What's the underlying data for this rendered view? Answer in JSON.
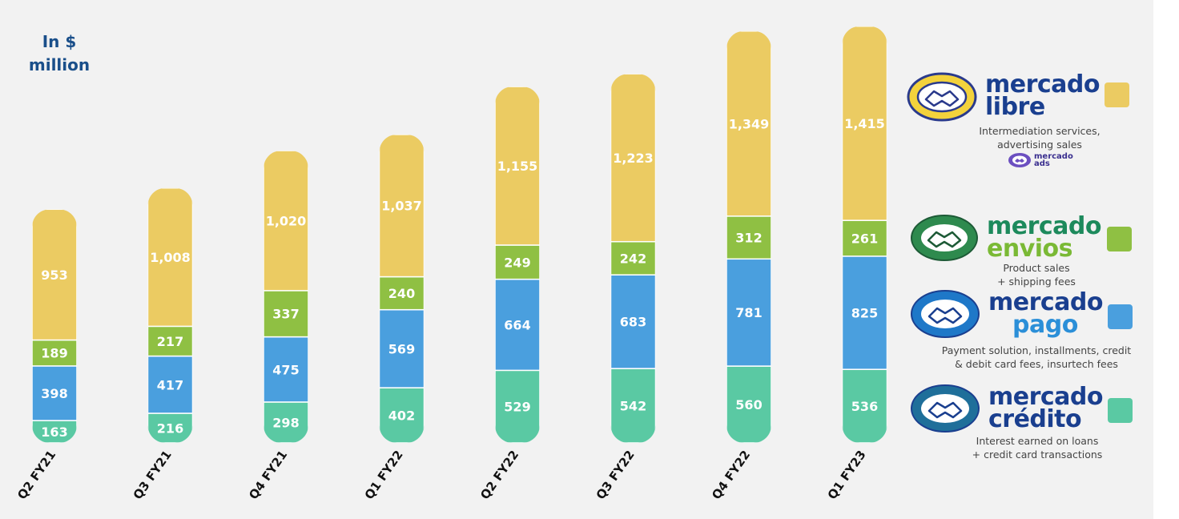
{
  "unit_label_line1": "In $",
  "unit_label_line2": "million",
  "chart_data": {
    "type": "bar",
    "stacked": true,
    "categories": [
      "Q2 FY21",
      "Q3 FY21",
      "Q4 FY21",
      "Q1 FY22",
      "Q2 FY22",
      "Q3 FY22",
      "Q4 FY22",
      "Q1 FY23"
    ],
    "series": [
      {
        "name": "mercado crédito",
        "color": "#5ac9a3",
        "values": [
          163,
          216,
          298,
          402,
          529,
          542,
          560,
          536
        ]
      },
      {
        "name": "mercado pago",
        "color": "#4a9fde",
        "values": [
          398,
          417,
          475,
          569,
          664,
          683,
          781,
          825
        ]
      },
      {
        "name": "mercado envíos",
        "color": "#8fc043",
        "values": [
          189,
          217,
          337,
          240,
          249,
          242,
          312,
          261
        ]
      },
      {
        "name": "mercado libre",
        "color": "#ebcb62",
        "values": [
          953,
          1008,
          1020,
          1037,
          1155,
          1223,
          1349,
          1415
        ]
      }
    ],
    "data_labels": [
      [
        "163",
        "216",
        "298",
        "402",
        "529",
        "542",
        "560",
        "536"
      ],
      [
        "398",
        "417",
        "475",
        "569",
        "664",
        "683",
        "781",
        "825"
      ],
      [
        "189",
        "217",
        "337",
        "240",
        "249",
        "242",
        "312",
        "261"
      ],
      [
        "953",
        "1,008",
        "1,020",
        "1,037",
        "1,155",
        "1,223",
        "1,349",
        "1,415"
      ]
    ],
    "title": "",
    "xlabel": "",
    "ylabel": "",
    "grid": false
  },
  "legend": [
    {
      "brand1": "mercado",
      "brand2": "libre",
      "brand_color": "#1a3f8f",
      "desc1": "Intermediation services,",
      "desc2": "advertising sales",
      "swatch": "#ebcb62",
      "icon_ring": "#f3d23c",
      "icon": "handshake-icon"
    },
    {
      "brand1": "mercado",
      "brand2": "envios",
      "brand_color": "#1d8a5c",
      "brand2_color": "#7ab935",
      "desc1": "Product sales",
      "desc2": "+ shipping fees",
      "swatch": "#8fc043",
      "icon_ring": "#2e8a4e",
      "icon": "handshake-icon"
    },
    {
      "brand1": "mercado",
      "brand2": "pago",
      "brand_color": "#1a3f8f",
      "brand2_color": "#2b8fd8",
      "desc1": "Payment solution, installments, credit",
      "desc2": "& debit card fees, insurtech fees",
      "swatch": "#4a9fde",
      "icon_ring": "#1e78c8",
      "icon": "handshake-icon"
    },
    {
      "brand1": "mercado",
      "brand2": "crédito",
      "brand_color": "#1a3f8f",
      "desc1": "Interest earned on loans",
      "desc2": "+ credit card transactions",
      "swatch": "#5ac9a3",
      "icon_ring": "#1f6f9a",
      "icon": "handshake-icon"
    }
  ],
  "ads_badge": {
    "line1": "mercado",
    "line2": "ads"
  }
}
